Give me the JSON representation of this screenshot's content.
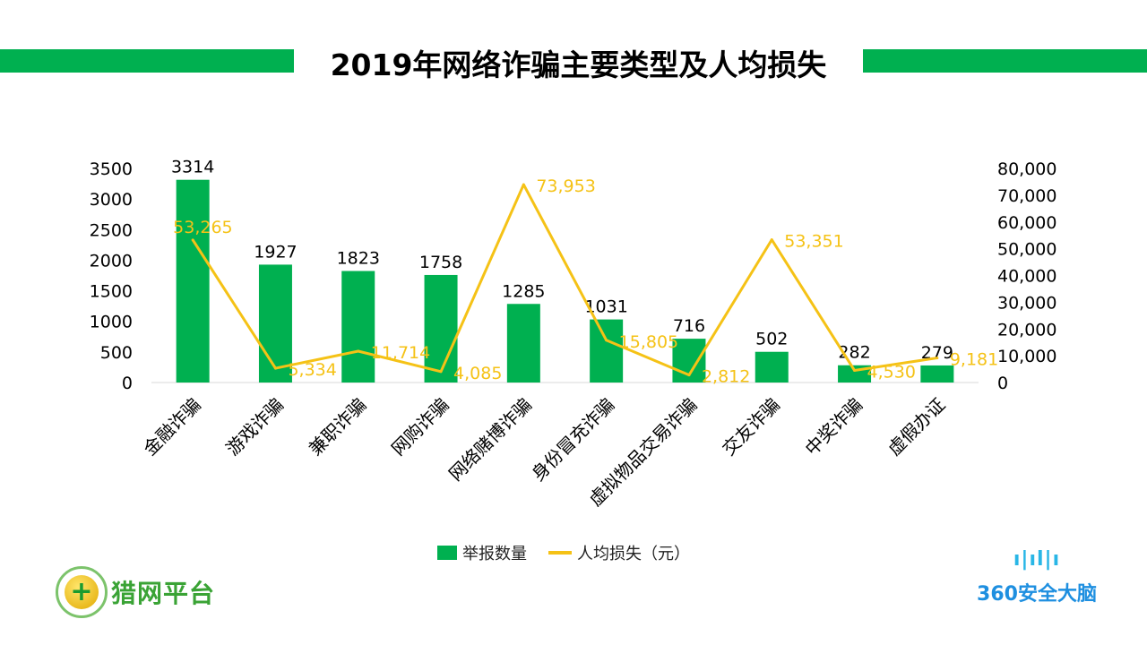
{
  "title": "2019年网络诈骗主要类型及人均损失",
  "legend": {
    "bar": "举报数量",
    "line": "人均损失（元）"
  },
  "logos": {
    "left": "猎网平台",
    "right": "360安全大脑"
  },
  "colors": {
    "bar": "#00B050",
    "line": "#F5C216",
    "title_band": "#00B050"
  },
  "chart_data": {
    "type": "bar+line",
    "title": "2019年网络诈骗主要类型及人均损失",
    "categories": [
      "金融诈骗",
      "游戏诈骗",
      "兼职诈骗",
      "网购诈骗",
      "网络赌博诈骗",
      "身份冒充诈骗",
      "虚拟物品交易诈骗",
      "交友诈骗",
      "中奖诈骗",
      "虚假办证"
    ],
    "series": [
      {
        "name": "举报数量",
        "type": "bar",
        "axis": "left",
        "values": [
          3314,
          1927,
          1823,
          1758,
          1285,
          1031,
          716,
          502,
          282,
          279
        ],
        "labels": [
          "3314",
          "1927",
          "1823",
          "1758",
          "1285",
          "1031",
          "716",
          "502",
          "282",
          "279"
        ]
      },
      {
        "name": "人均损失（元）",
        "type": "line",
        "axis": "right",
        "values": [
          53265,
          5334,
          11714,
          4085,
          73953,
          15805,
          2812,
          53351,
          4530,
          9181
        ],
        "labels": [
          "53,265",
          "5,334",
          "11,714",
          "4,085",
          "73,953",
          "15,805",
          "2,812",
          "53,351",
          "4,530",
          "9,181"
        ]
      }
    ],
    "left_axis": {
      "range": [
        0,
        3500
      ],
      "ticks": [
        "0",
        "500",
        "1000",
        "1500",
        "2000",
        "2500",
        "3000",
        "3500"
      ]
    },
    "right_axis": {
      "range": [
        0,
        80000
      ],
      "ticks": [
        "0",
        "10,000",
        "20,000",
        "30,000",
        "40,000",
        "50,000",
        "60,000",
        "70,000",
        "80,000"
      ]
    },
    "grid": false,
    "legend_position": "bottom"
  }
}
